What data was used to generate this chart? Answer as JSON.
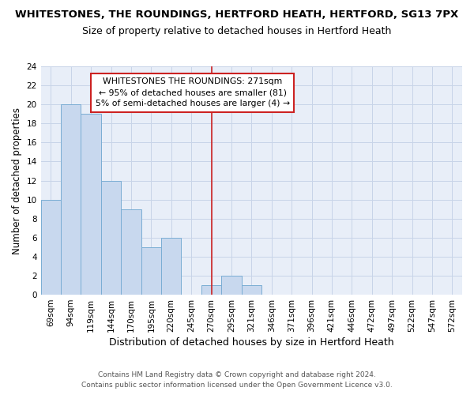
{
  "title": "WHITESTONES, THE ROUNDINGS, HERTFORD HEATH, HERTFORD, SG13 7PX",
  "subtitle": "Size of property relative to detached houses in Hertford Heath",
  "xlabel": "Distribution of detached houses by size in Hertford Heath",
  "ylabel": "Number of detached properties",
  "categories": [
    "69sqm",
    "94sqm",
    "119sqm",
    "144sqm",
    "170sqm",
    "195sqm",
    "220sqm",
    "245sqm",
    "270sqm",
    "295sqm",
    "321sqm",
    "346sqm",
    "371sqm",
    "396sqm",
    "421sqm",
    "446sqm",
    "472sqm",
    "497sqm",
    "522sqm",
    "547sqm",
    "572sqm"
  ],
  "values": [
    10,
    20,
    19,
    12,
    9,
    5,
    6,
    0,
    1,
    2,
    1,
    0,
    0,
    0,
    0,
    0,
    0,
    0,
    0,
    0,
    0
  ],
  "bar_color": "#c8d8ee",
  "bar_edge_color": "#7aadd4",
  "vline_color": "#cc2222",
  "annotation_text": "WHITESTONES THE ROUNDINGS: 271sqm\n← 95% of detached houses are smaller (81)\n5% of semi-detached houses are larger (4) →",
  "annotation_box_color": "#ffffff",
  "annotation_box_edge": "#cc2222",
  "ylim": [
    0,
    24
  ],
  "yticks": [
    0,
    2,
    4,
    6,
    8,
    10,
    12,
    14,
    16,
    18,
    20,
    22,
    24
  ],
  "grid_color": "#c8d4e8",
  "background_color": "#e8eef8",
  "footer1": "Contains HM Land Registry data © Crown copyright and database right 2024.",
  "footer2": "Contains public sector information licensed under the Open Government Licence v3.0.",
  "title_fontsize": 9.5,
  "subtitle_fontsize": 9,
  "xlabel_fontsize": 9,
  "ylabel_fontsize": 8.5,
  "tick_fontsize": 7.5,
  "annotation_fontsize": 7.8,
  "footer_fontsize": 6.5
}
